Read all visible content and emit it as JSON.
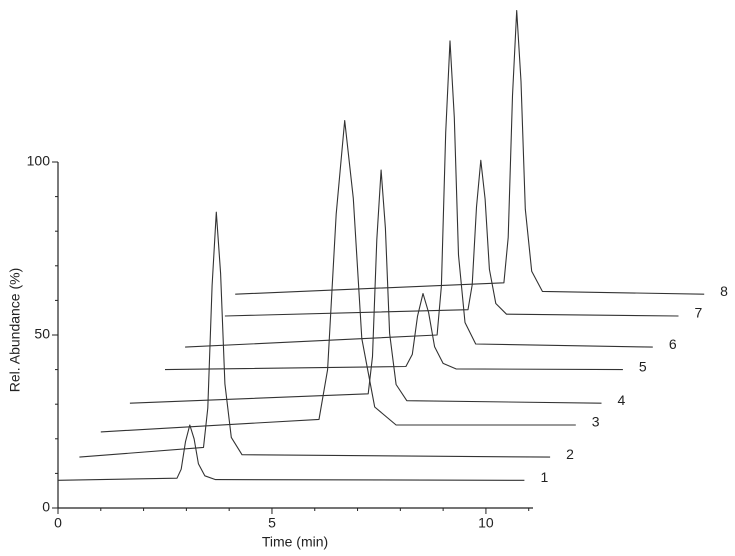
{
  "chart_data": {
    "type": "line",
    "xlabel": "Time (min)",
    "ylabel": "Rel. Abundance (%)",
    "xlim": [
      0,
      11.1
    ],
    "ylim": [
      0,
      100
    ],
    "xticks": [
      0,
      5,
      10
    ],
    "yticks": [
      0,
      50,
      100
    ],
    "xminor_ticks": [
      1,
      2,
      3,
      4,
      6,
      7,
      8,
      9,
      11
    ],
    "yminor_ticks": [
      10,
      20,
      30,
      40,
      60,
      70,
      80,
      90
    ],
    "series": [
      {
        "name": "1",
        "color": "#333333",
        "x": [
          0,
          2.78,
          2.88,
          2.98,
          3.08,
          3.18,
          3.28,
          3.43,
          3.68,
          10.9
        ],
        "values": [
          8,
          8.6,
          11.2,
          19.2,
          24,
          20,
          12.8,
          9.3,
          8.2,
          8
        ]
      },
      {
        "name": "2",
        "color": "#333333",
        "x": [
          0.5,
          3.4,
          3.5,
          3.6,
          3.7,
          3.8,
          3.9,
          4.05,
          4.3,
          11.5
        ],
        "values": [
          14.7,
          17.5,
          28.9,
          64.3,
          85.5,
          67.8,
          35.9,
          20.4,
          15.4,
          14.7
        ]
      },
      {
        "name": "3",
        "color": "#333333",
        "x": [
          1.0,
          6.1,
          6.3,
          6.5,
          6.7,
          6.9,
          7.1,
          7.4,
          7.9,
          12.1
        ],
        "values": [
          22,
          25.6,
          40,
          85,
          112,
          89.5,
          49,
          29.2,
          24,
          24
        ]
      },
      {
        "name": "4",
        "color": "#333333",
        "x": [
          1.68,
          7.25,
          7.35,
          7.45,
          7.55,
          7.65,
          7.75,
          7.9,
          8.15,
          12.7
        ],
        "values": [
          30.3,
          33,
          43.8,
          77.5,
          97.7,
          80.9,
          50.5,
          35.7,
          31,
          30.3
        ]
      },
      {
        "name": "5",
        "color": "#333333",
        "x": [
          2.5,
          8.13,
          8.28,
          8.4,
          8.53,
          8.66,
          8.8,
          9.0,
          9.3,
          13.2
        ],
        "values": [
          40,
          40.9,
          44.4,
          55.4,
          62,
          56.5,
          46.6,
          41.8,
          40.2,
          40
        ]
      },
      {
        "name": "6",
        "color": "#333333",
        "x": [
          2.97,
          8.86,
          8.96,
          9.06,
          9.16,
          9.26,
          9.36,
          9.51,
          9.76,
          13.9
        ],
        "values": [
          46.5,
          50,
          64.2,
          108.5,
          135,
          112.9,
          73.1,
          53.6,
          47.4,
          46.5
        ]
      },
      {
        "name": "7",
        "color": "#333333",
        "x": [
          3.9,
          9.58,
          9.68,
          9.78,
          9.88,
          9.98,
          10.08,
          10.23,
          10.48,
          14.5
        ],
        "values": [
          55.5,
          57.3,
          64.5,
          87,
          100.5,
          89.3,
          69,
          59.1,
          56,
          55.5
        ]
      },
      {
        "name": "8",
        "color": "#333333",
        "x": [
          4.14,
          10.42,
          10.52,
          10.62,
          10.72,
          10.82,
          10.92,
          11.07,
          11.32,
          15.1
        ],
        "values": [
          61.8,
          65.1,
          78.2,
          119.2,
          143.8,
          123.3,
          86.4,
          68.4,
          62.6,
          61.8
        ]
      }
    ]
  }
}
